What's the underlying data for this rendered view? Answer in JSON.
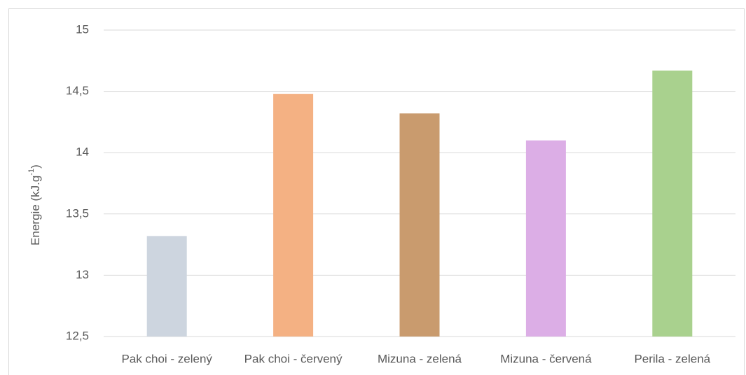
{
  "chart_data": {
    "type": "bar",
    "ylabel": "Energie  (kJ.g",
    "ylabel_sup": "-1",
    "ylabel_end": ")",
    "categories": [
      "Pak choi - zelený",
      "Pak choi - červený",
      "Mizuna - zelená",
      "Mizuna - červená",
      "Perila - zelená"
    ],
    "values": [
      13.32,
      14.48,
      14.32,
      14.1,
      14.67
    ],
    "colors": [
      "#cdd5df",
      "#f4b183",
      "#c99b6e",
      "#dcaee6",
      "#a9d18e"
    ],
    "ylim": [
      12.5,
      15
    ],
    "yticks": [
      {
        "value": 12.5,
        "label": "12,5"
      },
      13,
      {
        "value": 13.5,
        "label": "13,5"
      },
      14,
      {
        "value": 14.5,
        "label": "14,5"
      },
      15
    ],
    "grid": true
  }
}
